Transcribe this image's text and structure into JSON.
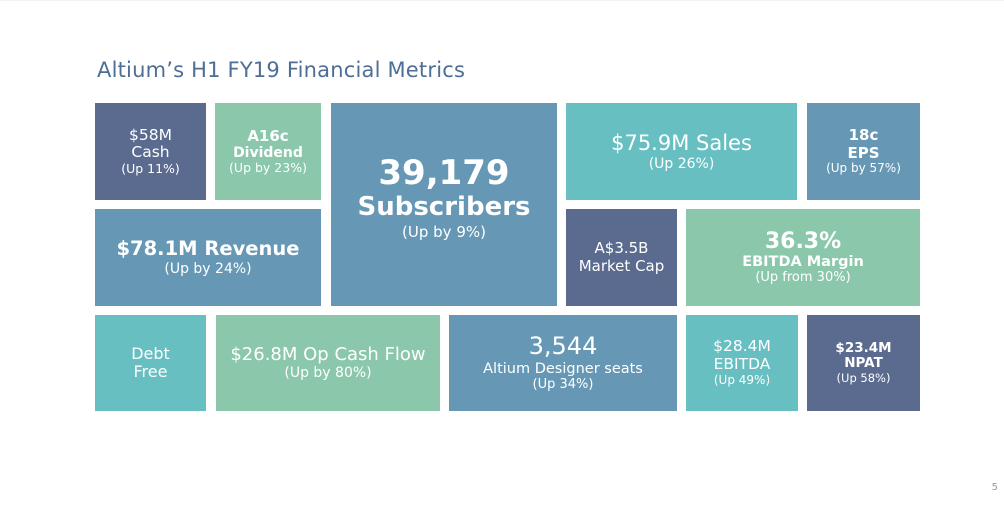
{
  "slide": {
    "title": "Altium’s H1 FY19 Financial Metrics",
    "page_number": "5"
  },
  "tiles": {
    "cash": {
      "line1": "$58M",
      "line2": "Cash",
      "sub": "(Up 11%)"
    },
    "dividend": {
      "line1": "A16c",
      "line2": "Dividend",
      "sub": "(Up by 23%)"
    },
    "subscribers": {
      "line1": "39,179",
      "line2": "Subscribers",
      "sub": "(Up by 9%)"
    },
    "sales": {
      "line1": "$75.9M Sales",
      "sub": "(Up 26%)"
    },
    "eps": {
      "line1": "18c",
      "line2": "EPS",
      "sub": "(Up by 57%)"
    },
    "revenue": {
      "line1": "$78.1M Revenue",
      "sub": "(Up by 24%)"
    },
    "market_cap": {
      "line1": "A$3.5B",
      "line2": "Market Cap"
    },
    "ebitda_margin": {
      "line1": "36.3%",
      "line2": "EBITDA Margin",
      "sub": "(Up from 30%)"
    },
    "debt_free": {
      "line1": "Debt",
      "line2": "Free"
    },
    "op_cash_flow": {
      "line1": "$26.8M Op Cash Flow",
      "sub": "(Up by 80%)"
    },
    "designer_seats": {
      "line1": "3,544",
      "line2": "Altium Designer seats",
      "sub": "(Up 34%)"
    },
    "ebitda": {
      "line1": "$28.4M",
      "line2": "EBITDA",
      "sub": "(Up 49%)"
    },
    "npat": {
      "line1": "$23.4M",
      "line2": "NPAT",
      "sub": "(Up 58%)"
    }
  },
  "colors": {
    "navy": "#5a6b8f",
    "blue": "#6698b6",
    "teal": "#67bfc2",
    "green": "#8bc7ab",
    "title": "#4e6e96"
  }
}
